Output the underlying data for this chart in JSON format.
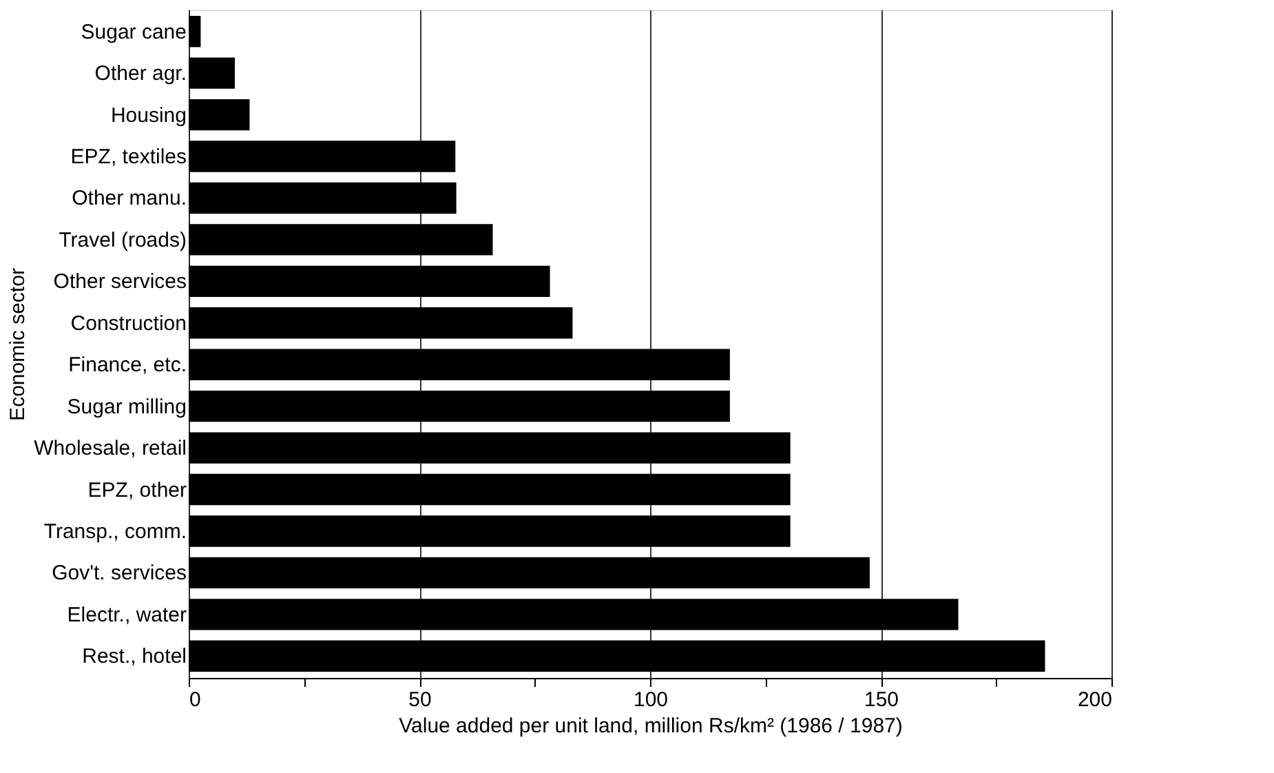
{
  "chart_data": {
    "type": "bar",
    "orientation": "horizontal",
    "xlabel": "Value added per unit land, million Rs/km² (1986 / 1987)",
    "ylabel": "Economic sector",
    "categories": [
      "Sugar cane",
      "Other agr.",
      "Housing",
      "EPZ, textiles",
      "Other manu.",
      "Travel (roads)",
      "Other services",
      "Construction",
      "Finance, etc.",
      "Sugar milling",
      "Wholesale, retail",
      "EPZ, other",
      "Transp., comm.",
      "Gov't. services",
      "Electr., water",
      "Rest., hotel"
    ],
    "values": [
      2.6,
      10,
      13.2,
      57.8,
      58,
      65.9,
      78.3,
      83.2,
      117.3,
      117.3,
      130.4,
      130.4,
      130.4,
      147.6,
      166.8,
      185.6
    ],
    "color": "#000000",
    "xlim": [
      0,
      200
    ],
    "xticks": [
      0,
      {
        "value": 25,
        "label": null
      },
      50,
      {
        "value": 75,
        "label": null
      },
      100,
      {
        "value": 125,
        "label": null
      },
      150,
      {
        "value": 175,
        "label": null
      },
      200
    ],
    "grid": "x"
  }
}
